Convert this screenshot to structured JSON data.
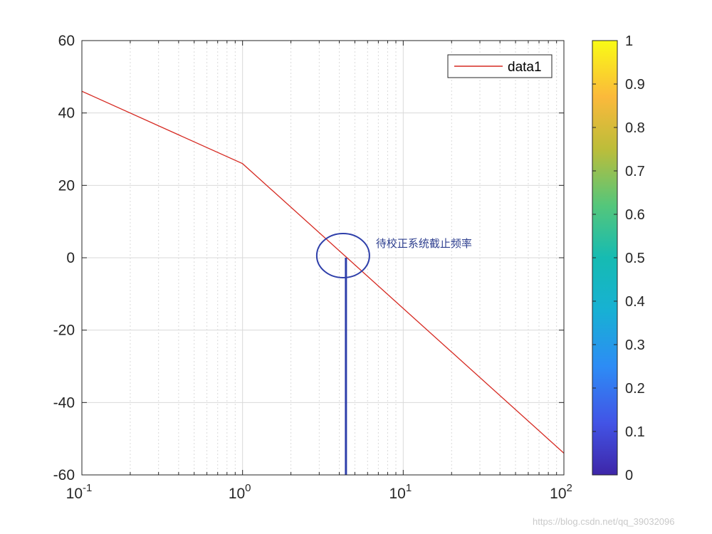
{
  "chart_data": {
    "type": "line",
    "xscale": "log",
    "xlim": [
      0.1,
      100
    ],
    "ylim": [
      -60,
      60
    ],
    "x_tick_labels": [
      {
        "base": "10",
        "exp": "-1"
      },
      {
        "base": "10",
        "exp": "0"
      },
      {
        "base": "10",
        "exp": "1"
      },
      {
        "base": "10",
        "exp": "2"
      }
    ],
    "x_ticks": [
      0.1,
      1,
      10,
      100
    ],
    "y_ticks": [
      60,
      40,
      20,
      0,
      -20,
      -40,
      -60
    ],
    "grid": true,
    "legend_position": "top-right",
    "series": [
      {
        "name": "data1",
        "color": "#d62a22",
        "x": [
          0.1,
          1,
          100
        ],
        "y": [
          46,
          26,
          -54
        ]
      }
    ],
    "annotations": {
      "text": "待校正系统截止频率",
      "marker_x": 4.4,
      "color": "#2e3faa"
    },
    "colorbar": {
      "range": [
        0,
        1
      ],
      "tick_labels": [
        "1",
        "0.9",
        "0.8",
        "0.7",
        "0.6",
        "0.5",
        "0.4",
        "0.3",
        "0.2",
        "0.1",
        "0"
      ],
      "colormap": "parula"
    }
  },
  "watermark": "https://blog.csdn.net/qq_39032096"
}
